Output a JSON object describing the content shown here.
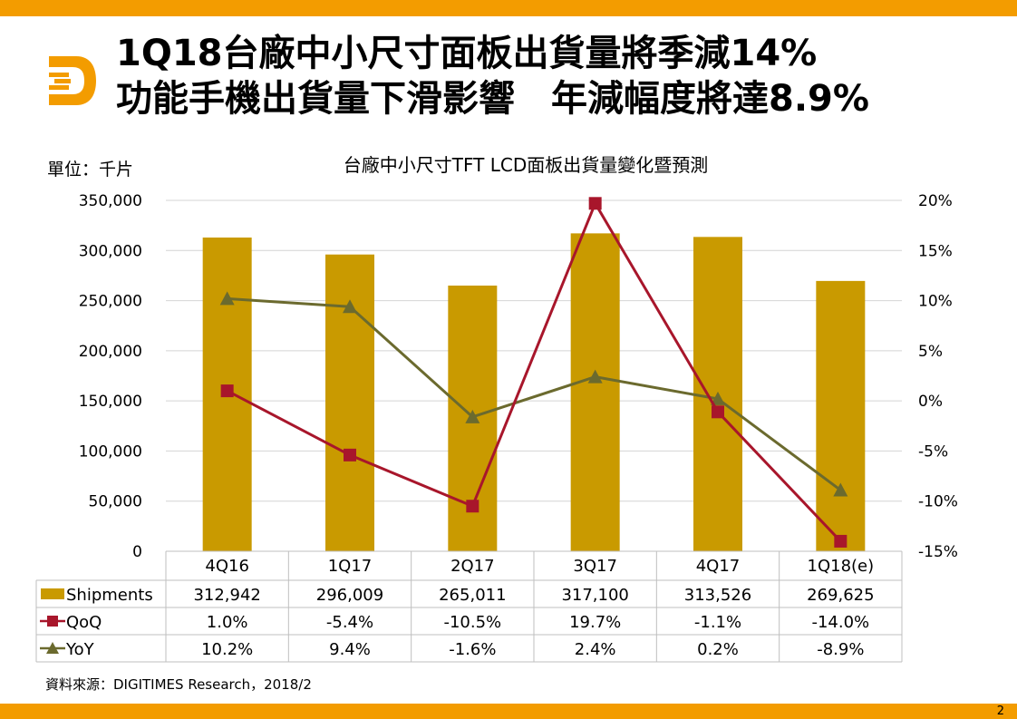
{
  "header": {
    "title_line1": "1Q18台廠中小尺寸面板出貨量將季減14%",
    "title_line2": "功能手機出貨量下滑影響　年減幅度將達8.9%"
  },
  "unit_label": "單位：千片",
  "source": "資料來源：DIGITIMES Research，2018/2",
  "page_number": "2",
  "colors": {
    "accent": "#f39c00",
    "bars": "#c99a00",
    "qoq": "#a8162b",
    "yoy": "#6b6a2e"
  },
  "chart_data": {
    "type": "bar",
    "title": "台廠中小尺寸TFT LCD面板出貨量變化暨預測",
    "categories": [
      "4Q16",
      "1Q17",
      "2Q17",
      "3Q17",
      "4Q17",
      "1Q18(e)"
    ],
    "y_left": {
      "ylim": [
        0,
        350000
      ],
      "ticks": [
        "350,000",
        "300,000",
        "250,000",
        "200,000",
        "150,000",
        "100,000",
        "50,000",
        "0"
      ]
    },
    "y_right": {
      "ylim": [
        -15,
        20
      ],
      "ticks": [
        "20%",
        "15%",
        "10%",
        "5%",
        "0%",
        "-5%",
        "-10%",
        "-15%"
      ]
    },
    "series": [
      {
        "name": "Shipments",
        "type": "bar",
        "axis": "left",
        "values": [
          312942,
          296009,
          265011,
          317100,
          313526,
          269625
        ],
        "labels": [
          "312,942",
          "296,009",
          "265,011",
          "317,100",
          "313,526",
          "269,625"
        ]
      },
      {
        "name": "QoQ",
        "type": "line",
        "axis": "right",
        "marker": "square",
        "values": [
          1.0,
          -5.4,
          -10.5,
          19.7,
          -1.1,
          -14.0
        ],
        "labels": [
          "1.0%",
          "-5.4%",
          "-10.5%",
          "19.7%",
          "-1.1%",
          "-14.0%"
        ]
      },
      {
        "name": "YoY",
        "type": "line",
        "axis": "right",
        "marker": "triangle",
        "values": [
          10.2,
          9.4,
          -1.6,
          2.4,
          0.2,
          -8.9
        ],
        "labels": [
          "10.2%",
          "9.4%",
          "-1.6%",
          "2.4%",
          "0.2%",
          "-8.9%"
        ]
      }
    ],
    "grid": true,
    "legend": "data table below chart"
  }
}
